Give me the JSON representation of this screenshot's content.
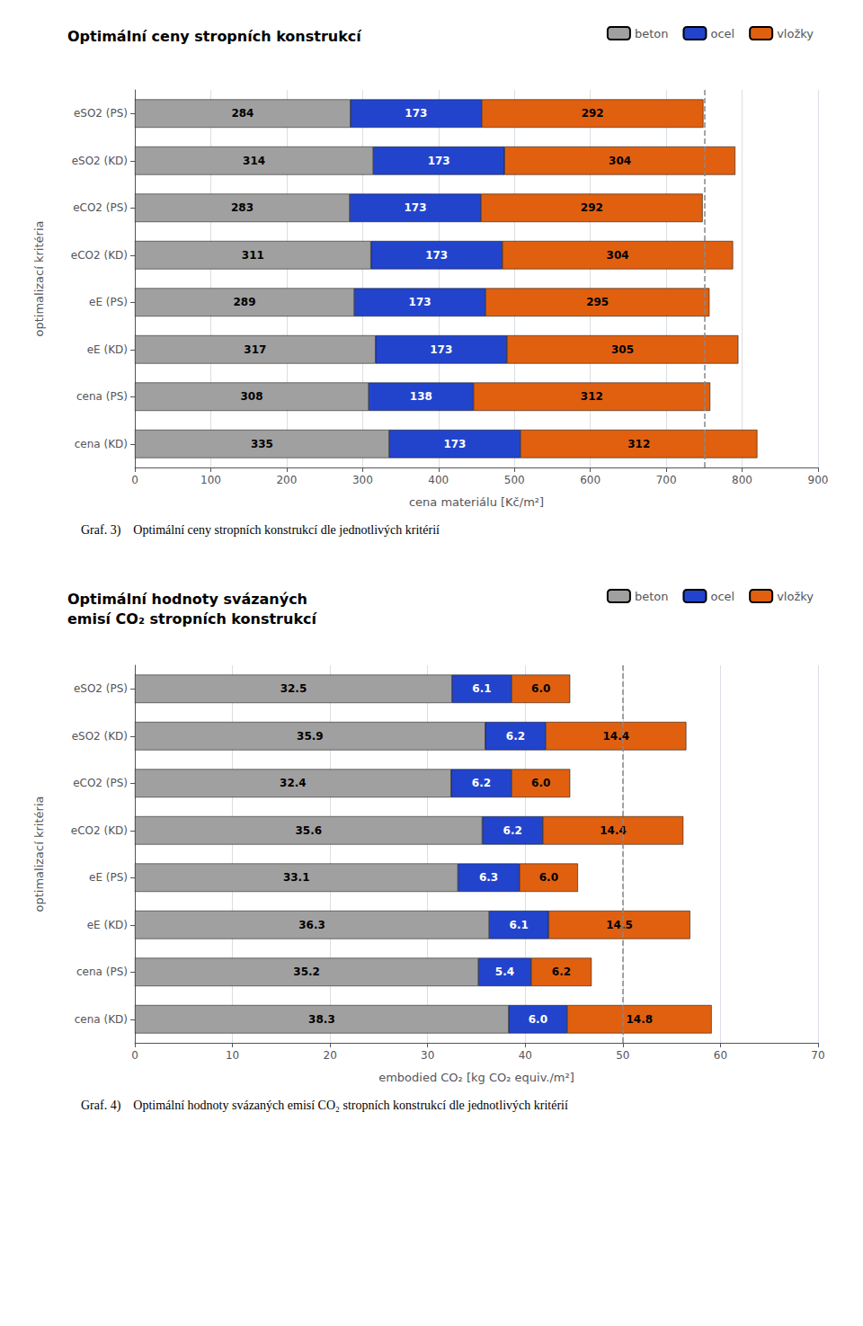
{
  "chart_data": [
    {
      "type": "bar",
      "title": "Optimální ceny stropních konstrukcí",
      "orientation": "horizontal",
      "stacked": true,
      "data_labels": true,
      "grid": true,
      "legend": "upper right",
      "categories": [
        "eSO2 (PS)",
        "eSO2 (KD)",
        "eCO2 (PS)",
        "eCO2 (KD)",
        "eE (PS)",
        "eE (KD)",
        "cena (PS)",
        "cena (KD)"
      ],
      "series": [
        {
          "name": "beton",
          "color": "#a0a0a0",
          "values": [
            284,
            314,
            283,
            311,
            289,
            317,
            308,
            335
          ]
        },
        {
          "name": "ocel",
          "color": "#2244cc",
          "values": [
            173,
            173,
            173,
            173,
            173,
            173,
            138,
            173
          ]
        },
        {
          "name": "vložky",
          "color": "#e06010",
          "values": [
            292,
            304,
            292,
            304,
            295,
            305,
            312,
            312
          ]
        }
      ],
      "xlabel": "cena materiálu [Kč/m²]",
      "ylabel": "optimalizací kritéria",
      "xlim": [
        0,
        900
      ],
      "xticks": [
        0,
        100,
        200,
        300,
        400,
        500,
        600,
        700,
        800,
        900
      ],
      "reference_x": 750,
      "annotations": [
        "Graf. 3)    Optimální ceny stropních konstrukcí dle jednotlivých kritérií"
      ]
    },
    {
      "type": "bar",
      "title": "Optimální hodnoty svázaných\nemisí CO₂ stropních konstrukcí",
      "orientation": "horizontal",
      "stacked": true,
      "data_labels": true,
      "grid": true,
      "legend": "upper right",
      "categories": [
        "eSO2 (PS)",
        "eSO2 (KD)",
        "eCO2 (PS)",
        "eCO2 (KD)",
        "eE (PS)",
        "eE (KD)",
        "cena (PS)",
        "cena (KD)"
      ],
      "series": [
        {
          "name": "beton",
          "color": "#a0a0a0",
          "values": [
            32.5,
            35.9,
            32.4,
            35.6,
            33.1,
            36.3,
            35.2,
            38.3
          ]
        },
        {
          "name": "ocel",
          "color": "#2244cc",
          "values": [
            6.1,
            6.2,
            6.2,
            6.2,
            6.3,
            6.1,
            5.4,
            6.0
          ],
          "value_labels": [
            "6.1",
            "6.2",
            "6.2",
            "6.2",
            "6.3",
            "6.1",
            "5.4",
            "6.0"
          ]
        },
        {
          "name": "vložky",
          "color": "#e06010",
          "values": [
            6.0,
            14.4,
            6.0,
            14.4,
            6.0,
            14.5,
            6.2,
            14.8
          ],
          "value_labels": [
            "6.0",
            "14.4",
            "6.0",
            "14.4",
            "6.0",
            "14.5",
            "6.2",
            "14.8"
          ]
        }
      ],
      "xlabel": "embodied CO₂ [kg CO₂ equiv./m²]",
      "ylabel": "optimalizací kritéria",
      "xlim": [
        0,
        70
      ],
      "xticks": [
        0,
        10,
        20,
        30,
        40,
        50,
        60,
        70
      ],
      "reference_x": 50,
      "annotations": [
        "Graf. 4)    Optimální hodnoty svázaných emisí CO₂ stropních konstrukcí dle jednotlivých kritérií"
      ]
    }
  ]
}
